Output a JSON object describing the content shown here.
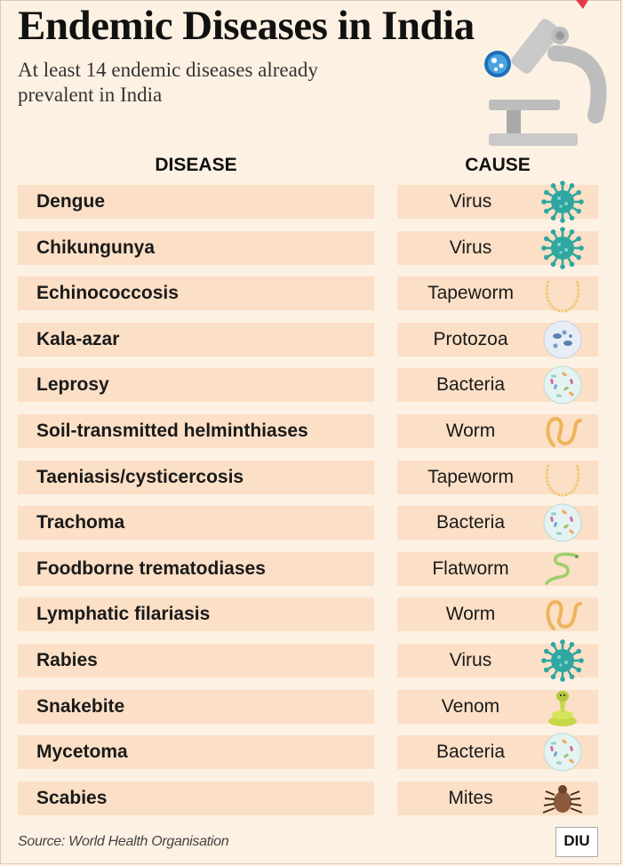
{
  "title": "Endemic Diseases in India",
  "subtitle": "At least 14 endemic diseases already prevalent in India",
  "table": {
    "header_disease": "DISEASE",
    "header_cause": "CAUSE",
    "rows": [
      {
        "disease": "Dengue",
        "cause": "Virus",
        "icon": "virus-icon"
      },
      {
        "disease": "Chikungunya",
        "cause": "Virus",
        "icon": "virus-icon"
      },
      {
        "disease": "Echinococcosis",
        "cause": "Tapeworm",
        "icon": "tapeworm-icon"
      },
      {
        "disease": "Kala-azar",
        "cause": "Protozoa",
        "icon": "protozoa-icon"
      },
      {
        "disease": "Leprosy",
        "cause": "Bacteria",
        "icon": "bacteria-icon"
      },
      {
        "disease": "Soil-transmitted helminthiases",
        "cause": "Worm",
        "icon": "worm-icon"
      },
      {
        "disease": "Taeniasis/cysticercosis",
        "cause": "Tapeworm",
        "icon": "tapeworm-icon"
      },
      {
        "disease": "Trachoma",
        "cause": "Bacteria",
        "icon": "bacteria-icon"
      },
      {
        "disease": "Foodborne trematodiases",
        "cause": "Flatworm",
        "icon": "flatworm-icon"
      },
      {
        "disease": "Lymphatic filariasis",
        "cause": "Worm",
        "icon": "worm-icon"
      },
      {
        "disease": "Rabies",
        "cause": "Virus",
        "icon": "virus-icon"
      },
      {
        "disease": "Snakebite",
        "cause": "Venom",
        "icon": "snake-icon"
      },
      {
        "disease": "Mycetoma",
        "cause": "Bacteria",
        "icon": "bacteria-icon"
      },
      {
        "disease": "Scabies",
        "cause": "Mites",
        "icon": "mite-icon"
      }
    ]
  },
  "source": "Source: World Health Organisation",
  "logo_text": "DIU",
  "header_icon": "microscope-icon",
  "colors": {
    "background": "#fdf1e3",
    "row_fill": "#fbdfc6",
    "virus": "#2fa7a0",
    "worm": "#f0b35a",
    "bacteria": "#8fcfc9"
  }
}
